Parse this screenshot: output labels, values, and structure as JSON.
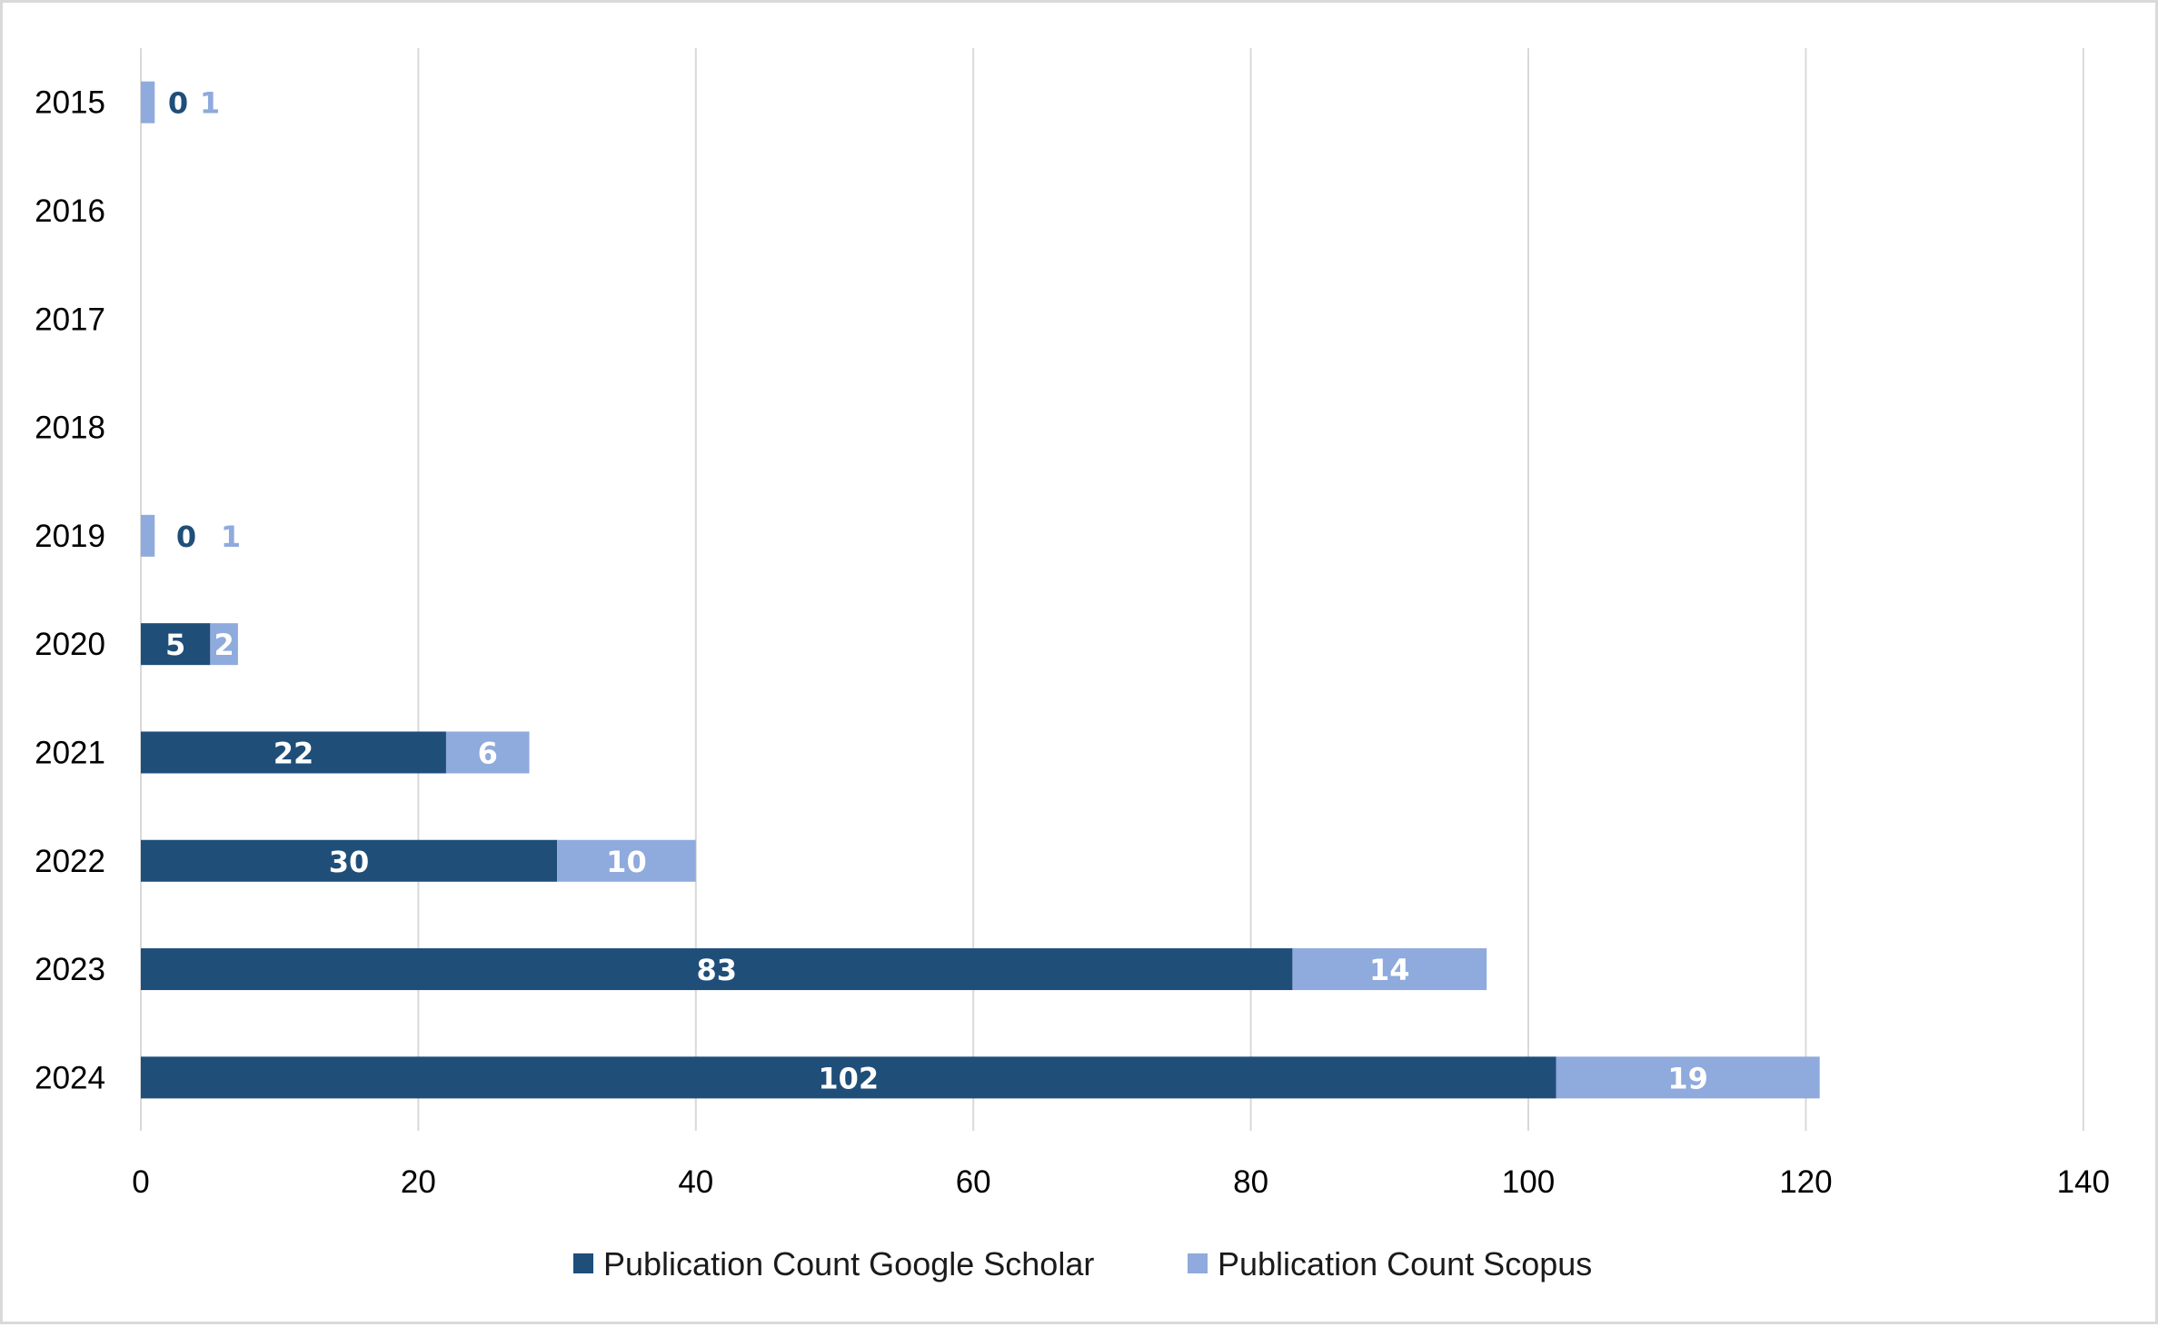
{
  "chart_data": {
    "type": "bar",
    "orientation": "horizontal",
    "stacked": true,
    "categories": [
      "2015",
      "2016",
      "2017",
      "2018",
      "2019",
      "2020",
      "2021",
      "2022",
      "2023",
      "2024"
    ],
    "series": [
      {
        "name": "Publication Count Google Scholar",
        "color": "#1f4e79",
        "values": [
          0,
          null,
          null,
          null,
          0,
          5,
          22,
          30,
          83,
          102
        ]
      },
      {
        "name": "Publication Count Scopus",
        "color": "#8faadc",
        "values": [
          1,
          null,
          null,
          null,
          1,
          2,
          6,
          10,
          14,
          19
        ]
      }
    ],
    "x_ticks": [
      "0",
      "20",
      "40",
      "60",
      "80",
      "100",
      "120",
      "140"
    ],
    "xlim": [
      0,
      140
    ],
    "xlabel": "",
    "ylabel": "",
    "title": "",
    "grid": "vertical",
    "legend_position": "bottom"
  }
}
